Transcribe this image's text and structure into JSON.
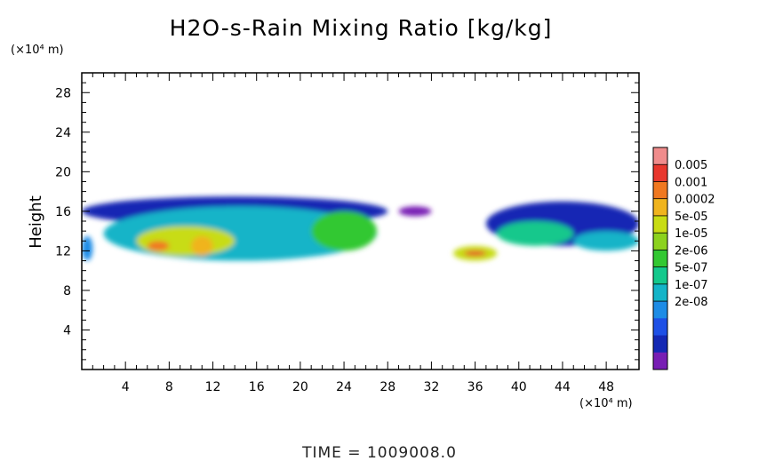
{
  "chart_data": {
    "type": "heatmap",
    "title": "H2O-s-Rain Mixing Ratio [kg/kg]",
    "ylabel": "Height",
    "y_unit": "(×10⁴ m)",
    "x_unit": "(×10⁴ m)",
    "xlim": [
      0,
      51
    ],
    "ylim": [
      0,
      30
    ],
    "x_ticks": [
      "4",
      "8",
      "12",
      "16",
      "20",
      "24",
      "28",
      "32",
      "36",
      "40",
      "44",
      "48"
    ],
    "y_ticks": [
      "4",
      "8",
      "12",
      "16",
      "20",
      "24",
      "28"
    ],
    "grid": false,
    "colorbar": {
      "placement": "right",
      "labels": [
        "0.005",
        "0.001",
        "0.0002",
        "5e-05",
        "1e-05",
        "2e-06",
        "5e-07",
        "1e-07",
        "2e-08"
      ],
      "colors": [
        "#f08c8c",
        "#e8372d",
        "#f07820",
        "#f0b41e",
        "#c8dc14",
        "#8cd21e",
        "#32c832",
        "#14c88c",
        "#14b4c8",
        "#1e8ce6",
        "#1e50e6",
        "#1428b4",
        "#781eb4"
      ]
    },
    "regions": [
      {
        "x": [
          0,
          1
        ],
        "y": [
          11,
          13.5
        ],
        "level": 3
      },
      {
        "x": [
          0,
          28
        ],
        "y": [
          14.5,
          17.5
        ],
        "level": 1
      },
      {
        "x": [
          2,
          27
        ],
        "y": [
          11,
          16.5
        ],
        "level": 4
      },
      {
        "x": [
          5,
          14
        ],
        "y": [
          11.5,
          14.5
        ],
        "level": 8
      },
      {
        "x": [
          6,
          8
        ],
        "y": [
          12,
          13
        ],
        "level": 10
      },
      {
        "x": [
          10,
          12
        ],
        "y": [
          11.5,
          13.5
        ],
        "level": 9
      },
      {
        "x": [
          21,
          27
        ],
        "y": [
          12,
          16
        ],
        "level": 6
      },
      {
        "x": [
          29,
          32
        ],
        "y": [
          15.5,
          16.5
        ],
        "level": 0
      },
      {
        "x": [
          34,
          38
        ],
        "y": [
          11,
          12.5
        ],
        "level": 8
      },
      {
        "x": [
          35,
          37
        ],
        "y": [
          11.5,
          12
        ],
        "level": 11
      },
      {
        "x": [
          37,
          51
        ],
        "y": [
          12.5,
          17
        ],
        "level": 1
      },
      {
        "x": [
          38,
          45
        ],
        "y": [
          12.5,
          15
        ],
        "level": 5
      },
      {
        "x": [
          45,
          51
        ],
        "y": [
          12,
          14
        ],
        "level": 4
      }
    ],
    "time_label": "TIME = 1009008.0"
  }
}
